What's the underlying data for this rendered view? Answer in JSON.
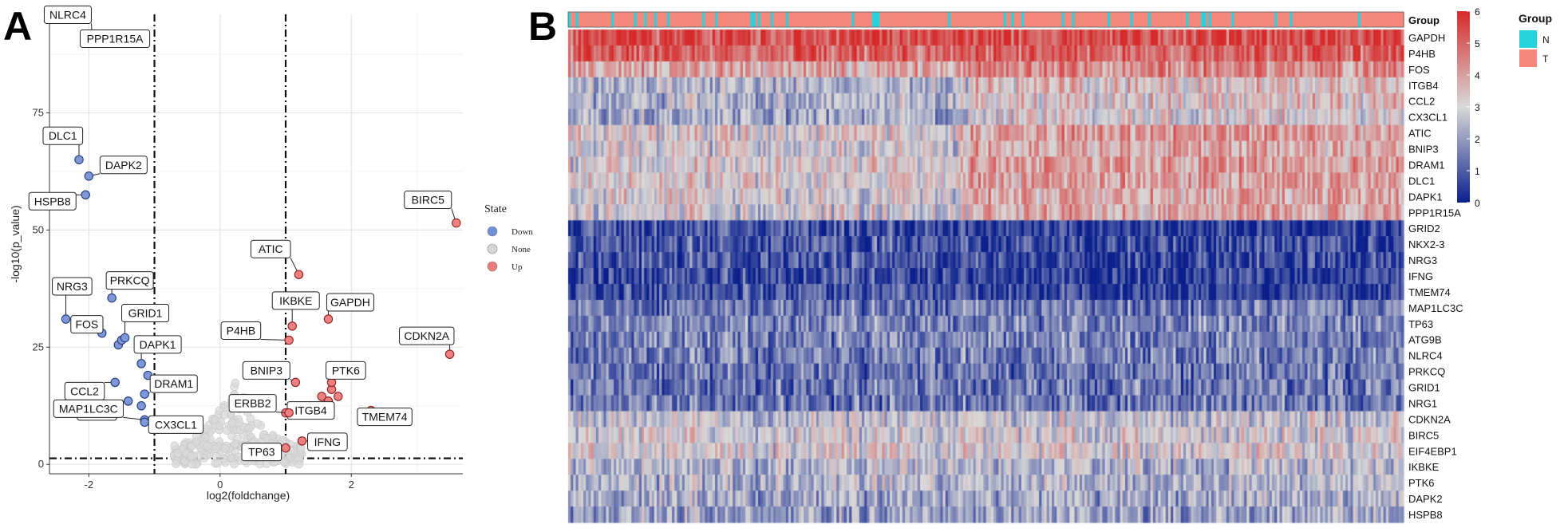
{
  "panels": {
    "a": "A",
    "b": "B"
  },
  "chart_data": [
    {
      "type": "scatter",
      "title": "",
      "xlabel": "log2(foldchange)",
      "ylabel": "-log10(p_value)",
      "xlim": [
        -2.6,
        3.7
      ],
      "ylim": [
        -2,
        96
      ],
      "xticks": [
        -2,
        0,
        2
      ],
      "xtick_labels": [
        "-2",
        "0",
        "2"
      ],
      "yticks": [
        0,
        25,
        50,
        75
      ],
      "ytick_labels": [
        "0",
        "25",
        "50",
        "75"
      ],
      "thresholds": {
        "x": [
          -1,
          1
        ],
        "y": 1.3
      },
      "grid": true,
      "legend": {
        "title": "State",
        "position": "right",
        "entries": [
          {
            "label": "Down",
            "color": "#6f8fd8"
          },
          {
            "label": "None",
            "color": "#d6d6d6"
          },
          {
            "label": "Up",
            "color": "#ec7b7b"
          }
        ]
      },
      "labeled_points": [
        {
          "gene": "NLRC4",
          "x": -1.95,
          "y": 91.5,
          "state": "Down"
        },
        {
          "gene": "PPP1R15A",
          "x": -1.95,
          "y": 91.5,
          "state": "Down"
        },
        {
          "gene": "DLC1",
          "x": -2.15,
          "y": 65,
          "state": "Down"
        },
        {
          "gene": "DAPK2",
          "x": -2.0,
          "y": 61.5,
          "state": "Down"
        },
        {
          "gene": "HSPB8",
          "x": -2.05,
          "y": 57.5,
          "state": "Down"
        },
        {
          "gene": "BIRC5",
          "x": 3.6,
          "y": 51.5,
          "state": "Up"
        },
        {
          "gene": "ATIC",
          "x": 1.2,
          "y": 40.5,
          "state": "Up"
        },
        {
          "gene": "NRG3",
          "x": -2.35,
          "y": 31,
          "state": "Down"
        },
        {
          "gene": "PRKCQ",
          "x": -1.65,
          "y": 35.5,
          "state": "Down"
        },
        {
          "gene": "IKBKE",
          "x": 1.1,
          "y": 29.5,
          "state": "Up"
        },
        {
          "gene": "GAPDH",
          "x": 1.65,
          "y": 31,
          "state": "Up"
        },
        {
          "gene": "FOS",
          "x": -1.8,
          "y": 28,
          "state": "Down"
        },
        {
          "gene": "GRID1",
          "x": -1.45,
          "y": 27,
          "state": "Down"
        },
        {
          "gene": "P4HB",
          "x": 1.05,
          "y": 26.5,
          "state": "Up"
        },
        {
          "gene": "CDKN2A",
          "x": 3.5,
          "y": 23.5,
          "state": "Up"
        },
        {
          "gene": "DAPK1",
          "x": -1.2,
          "y": 21.5,
          "state": "Down"
        },
        {
          "gene": "CCL2",
          "x": -1.6,
          "y": 17.5,
          "state": "Down"
        },
        {
          "gene": "BNIP3",
          "x": 1.15,
          "y": 17.5,
          "state": "Up"
        },
        {
          "gene": "PTK6",
          "x": 1.7,
          "y": 17.5,
          "state": "Up"
        },
        {
          "gene": "DRAM1",
          "x": -1.15,
          "y": 15,
          "state": "Down"
        },
        {
          "gene": "NRG1",
          "x": -1.4,
          "y": 13.5,
          "state": "Down"
        },
        {
          "gene": "ITGB4",
          "x": 1.0,
          "y": 11,
          "state": "Up"
        },
        {
          "gene": "TMEM74",
          "x": 2.3,
          "y": 11.5,
          "state": "Up"
        },
        {
          "gene": "ERBB2",
          "x": 1.05,
          "y": 11,
          "state": "Up"
        },
        {
          "gene": "MAP1LC3C",
          "x": -1.15,
          "y": 9.5,
          "state": "Down"
        },
        {
          "gene": "CX3CL1",
          "x": -1.15,
          "y": 9.0,
          "state": "Down"
        },
        {
          "gene": "IFNG",
          "x": 1.25,
          "y": 5,
          "state": "Up"
        },
        {
          "gene": "TP63",
          "x": 1.0,
          "y": 3.5,
          "state": "Up"
        }
      ],
      "unlabeled_points": [
        {
          "x": -1.55,
          "y": 25.5,
          "state": "Down"
        },
        {
          "x": -1.5,
          "y": 26.5,
          "state": "Down"
        },
        {
          "x": -1.1,
          "y": 19,
          "state": "Down"
        },
        {
          "x": -1.2,
          "y": 12.5,
          "state": "Down"
        },
        {
          "x": 1.55,
          "y": 14.5,
          "state": "Up"
        },
        {
          "x": 1.65,
          "y": 13.5,
          "state": "Up"
        },
        {
          "x": 1.8,
          "y": 14.5,
          "state": "Up"
        },
        {
          "x": 1.7,
          "y": 16,
          "state": "Up"
        }
      ]
    },
    {
      "type": "heatmap",
      "title": "",
      "annotation_row": "Group",
      "group_legend": {
        "title": "Group",
        "entries": [
          {
            "label": "N",
            "color": "#26d2dc"
          },
          {
            "label": "T",
            "color": "#f5887c"
          }
        ]
      },
      "colorbar": {
        "ticks": [
          0,
          1,
          2,
          3,
          4,
          5,
          6
        ],
        "min": 0,
        "max": 6,
        "low_color": "#0a1f8c",
        "mid_color": "#d9d9d9",
        "high_color": "#d62a2a"
      },
      "genes": [
        "GAPDH",
        "P4HB",
        "FOS",
        "ITGB4",
        "CCL2",
        "CX3CL1",
        "ATIC",
        "BNIP3",
        "DRAM1",
        "DLC1",
        "DAPK1",
        "PPP1R15A",
        "GRID2",
        "NKX2-3",
        "NRG3",
        "IFNG",
        "TMEM74",
        "MAP1LC3C",
        "TP63",
        "ATG9B",
        "NLRC4",
        "PRKCQ",
        "GRID1",
        "NRG1",
        "CDKN2A",
        "BIRC5",
        "EIF4EBP1",
        "IKBKE",
        "PTK6",
        "DAPK2",
        "HSPB8"
      ],
      "gene_levels": [
        5.4,
        5.0,
        4.3,
        3.0,
        2.9,
        2.7,
        3.6,
        3.4,
        3.6,
        3.6,
        3.5,
        3.4,
        0.4,
        0.6,
        0.6,
        0.4,
        0.5,
        1.4,
        1.6,
        1.6,
        1.5,
        1.4,
        1.4,
        1.4,
        2.7,
        2.9,
        3.0,
        2.4,
        2.4,
        2.2,
        2.1
      ]
    }
  ]
}
